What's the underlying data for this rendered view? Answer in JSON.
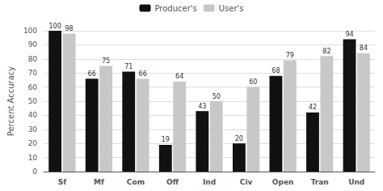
{
  "chart_data": {
    "type": "bar",
    "categories": [
      "Sf",
      "Mf",
      "Com",
      "Off",
      "Ind",
      "Civ",
      "Open",
      "Tran",
      "Und"
    ],
    "series": [
      {
        "name": "Producer's",
        "color": "#111111",
        "values": [
          100,
          66,
          71,
          19,
          43,
          20,
          68,
          42,
          94
        ]
      },
      {
        "name": "User's",
        "color": "#c8c8c8",
        "values": [
          98,
          75,
          66,
          64,
          50,
          60,
          79,
          82,
          84
        ]
      }
    ],
    "ylabel": "Percent Accuracy",
    "ylim": [
      0,
      100
    ],
    "yticks": [
      0,
      10,
      20,
      30,
      40,
      50,
      60,
      70,
      80,
      90,
      100
    ],
    "grid": true,
    "legend": "top",
    "data_labels": true
  }
}
